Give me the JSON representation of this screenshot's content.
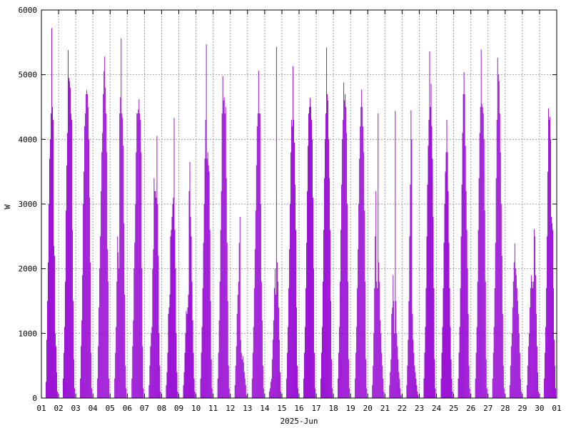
{
  "chart_data": {
    "type": "bar",
    "xlabel": "2025-Jun",
    "ylabel": "W",
    "ylim": [
      0,
      6000
    ],
    "xlim": [
      "2025-06-01",
      "2025-07-01"
    ],
    "grid": true,
    "yticks": [
      "0",
      "1000",
      "2000",
      "3000",
      "4000",
      "5000",
      "6000"
    ],
    "xticks": [
      "01",
      "02",
      "03",
      "04",
      "05",
      "06",
      "07",
      "08",
      "09",
      "10",
      "11",
      "12",
      "13",
      "14",
      "15",
      "16",
      "17",
      "18",
      "19",
      "20",
      "21",
      "22",
      "23",
      "24",
      "25",
      "26",
      "27",
      "28",
      "29",
      "30",
      "01"
    ],
    "bar_color": "#9400d3",
    "series": [
      {
        "daily_peak_W": [
          5720,
          5380,
          4760,
          5280,
          5560,
          4620,
          4050,
          4330,
          3650,
          5470,
          4980,
          2800,
          5060,
          5430,
          5130,
          4640,
          5420,
          4880,
          4770,
          4400,
          4440,
          4450,
          5360,
          4300,
          5040,
          5390,
          5260,
          2390,
          2610,
          4480
        ],
        "daily_shape": [
          [
            0,
            0,
            0,
            0,
            0,
            0,
            250,
            900,
            1500,
            2100,
            3000,
            3700,
            4000,
            4400,
            5720,
            4500,
            4300,
            2350,
            2200,
            1000,
            800,
            400,
            100,
            0
          ],
          [
            0,
            0,
            0,
            0,
            0,
            0,
            300,
            700,
            1100,
            1800,
            2900,
            3600,
            4100,
            5380,
            4950,
            4900,
            4800,
            4400,
            4300,
            2600,
            1500,
            600,
            150,
            0
          ],
          [
            0,
            0,
            0,
            0,
            0,
            0,
            300,
            800,
            1200,
            1900,
            3000,
            3500,
            4200,
            4400,
            4700,
            4760,
            4700,
            4500,
            4000,
            3100,
            2100,
            700,
            150,
            0
          ],
          [
            0,
            0,
            0,
            0,
            0,
            0,
            300,
            800,
            1400,
            2000,
            2500,
            3200,
            3800,
            4100,
            4700,
            5050,
            5280,
            4800,
            4400,
            3800,
            2300,
            1800,
            300,
            0
          ],
          [
            0,
            0,
            0,
            0,
            0,
            0,
            300,
            700,
            1100,
            1800,
            2500,
            2250,
            2000,
            4400,
            4650,
            5560,
            4400,
            4330,
            3900,
            2700,
            1600,
            500,
            150,
            0
          ],
          [
            0,
            0,
            0,
            0,
            0,
            0,
            300,
            800,
            1200,
            2000,
            2400,
            3000,
            3800,
            4400,
            4400,
            4460,
            4620,
            4400,
            4300,
            3800,
            2000,
            800,
            150,
            0
          ],
          [
            0,
            0,
            0,
            0,
            0,
            0,
            200,
            500,
            800,
            1000,
            1100,
            2000,
            2300,
            3400,
            3200,
            3200,
            3100,
            4050,
            3000,
            2200,
            1000,
            500,
            100,
            0
          ],
          [
            0,
            0,
            0,
            0,
            0,
            0,
            200,
            400,
            700,
            1300,
            1400,
            1600,
            2500,
            2600,
            2800,
            3000,
            3100,
            4330,
            2600,
            2000,
            1000,
            400,
            100,
            0
          ],
          [
            0,
            0,
            0,
            0,
            0,
            0,
            200,
            400,
            700,
            1000,
            1350,
            1300,
            1400,
            1600,
            3200,
            3650,
            2800,
            2500,
            1800,
            1200,
            700,
            300,
            100,
            0
          ],
          [
            0,
            0,
            0,
            0,
            0,
            0,
            300,
            700,
            1100,
            1700,
            2400,
            3000,
            3700,
            4300,
            5470,
            3700,
            3800,
            3600,
            3500,
            2600,
            1500,
            600,
            150,
            0
          ],
          [
            0,
            0,
            0,
            0,
            0,
            0,
            300,
            700,
            1200,
            1800,
            2600,
            3200,
            4400,
            4980,
            4600,
            4650,
            4400,
            4500,
            3400,
            2400,
            1500,
            500,
            150,
            0
          ],
          [
            0,
            0,
            0,
            0,
            0,
            0,
            200,
            500,
            800,
            1300,
            1600,
            1800,
            2400,
            2800,
            900,
            700,
            600,
            650,
            550,
            400,
            300,
            200,
            50,
            0
          ],
          [
            0,
            0,
            0,
            0,
            0,
            0,
            300,
            700,
            1100,
            1700,
            2300,
            2900,
            3600,
            4200,
            4400,
            5060,
            4400,
            4400,
            3000,
            1800,
            1200,
            500,
            150,
            0
          ],
          [
            0,
            0,
            0,
            0,
            0,
            0,
            100,
            150,
            250,
            300,
            600,
            900,
            1200,
            1700,
            2000,
            1600,
            5430,
            2100,
            1800,
            1400,
            900,
            400,
            100,
            0
          ],
          [
            0,
            0,
            0,
            0,
            0,
            0,
            300,
            700,
            1100,
            1700,
            2300,
            3000,
            3800,
            4300,
            4200,
            5130,
            4300,
            3950,
            3300,
            2600,
            1400,
            500,
            150,
            0
          ],
          [
            0,
            0,
            0,
            0,
            0,
            0,
            300,
            700,
            1100,
            1700,
            2400,
            3200,
            3900,
            4400,
            4500,
            4640,
            4500,
            4300,
            4000,
            3100,
            2000,
            700,
            150,
            0
          ],
          [
            0,
            0,
            0,
            0,
            0,
            0,
            300,
            700,
            1100,
            1800,
            2600,
            3400,
            4000,
            4400,
            5420,
            4700,
            4600,
            4000,
            3400,
            2600,
            1500,
            600,
            150,
            0
          ],
          [
            0,
            0,
            0,
            0,
            0,
            0,
            300,
            700,
            1100,
            1800,
            2600,
            3300,
            4000,
            4300,
            4880,
            4600,
            4700,
            4500,
            4100,
            3000,
            1800,
            600,
            150,
            0
          ],
          [
            0,
            0,
            0,
            0,
            0,
            0,
            300,
            700,
            1100,
            1700,
            2300,
            3000,
            3700,
            4200,
            4500,
            4770,
            4500,
            4200,
            3800,
            2900,
            1800,
            600,
            150,
            0
          ],
          [
            0,
            0,
            0,
            0,
            0,
            0,
            200,
            500,
            1000,
            1700,
            2500,
            3200,
            1800,
            1700,
            4400,
            2100,
            1800,
            1200,
            1000,
            700,
            500,
            300,
            100,
            0
          ],
          [
            0,
            0,
            0,
            0,
            0,
            0,
            200,
            400,
            600,
            1300,
            1400,
            1900,
            1500,
            1000,
            4440,
            1500,
            1000,
            800,
            600,
            400,
            300,
            150,
            50,
            0
          ],
          [
            0,
            0,
            0,
            0,
            0,
            0,
            200,
            500,
            900,
            1500,
            2500,
            3300,
            4450,
            4000,
            1300,
            900,
            700,
            500,
            400,
            300,
            200,
            100,
            50,
            0
          ],
          [
            0,
            0,
            0,
            0,
            0,
            0,
            300,
            700,
            1100,
            1700,
            2500,
            3300,
            3900,
            4300,
            5360,
            4500,
            4860,
            4200,
            3700,
            2800,
            1700,
            600,
            150,
            0
          ],
          [
            0,
            0,
            0,
            0,
            0,
            0,
            300,
            700,
            1100,
            1700,
            2400,
            3000,
            3500,
            3800,
            4300,
            3800,
            3200,
            2400,
            1700,
            1100,
            600,
            300,
            100,
            0
          ],
          [
            0,
            0,
            0,
            0,
            0,
            0,
            300,
            700,
            1100,
            1700,
            2500,
            3300,
            4100,
            4700,
            5040,
            4700,
            3900,
            3200,
            2600,
            2000,
            1300,
            500,
            150,
            0
          ],
          [
            0,
            0,
            0,
            0,
            0,
            0,
            300,
            700,
            1100,
            1800,
            2600,
            3400,
            4100,
            4500,
            5390,
            4550,
            4500,
            4400,
            4000,
            2900,
            1800,
            600,
            150,
            0
          ],
          [
            0,
            0,
            0,
            0,
            0,
            0,
            300,
            700,
            1100,
            1700,
            2400,
            3400,
            4300,
            5260,
            5000,
            4900,
            4400,
            3800,
            3000,
            2200,
            1300,
            500,
            150,
            0
          ],
          [
            0,
            0,
            0,
            0,
            0,
            0,
            200,
            500,
            800,
            1000,
            1400,
            1800,
            2100,
            2390,
            2000,
            1900,
            1700,
            1500,
            1300,
            1000,
            700,
            300,
            100,
            0
          ],
          [
            0,
            0,
            0,
            0,
            0,
            0,
            200,
            500,
            800,
            1000,
            1400,
            1700,
            1900,
            1800,
            1700,
            1800,
            2610,
            2500,
            1900,
            1300,
            800,
            400,
            100,
            0
          ],
          [
            0,
            0,
            0,
            0,
            0,
            0,
            300,
            700,
            1100,
            1700,
            2500,
            3500,
            4480,
            4300,
            4350,
            4000,
            2800,
            2700,
            2600,
            1700,
            900,
            500,
            150,
            0
          ]
        ]
      }
    ]
  }
}
